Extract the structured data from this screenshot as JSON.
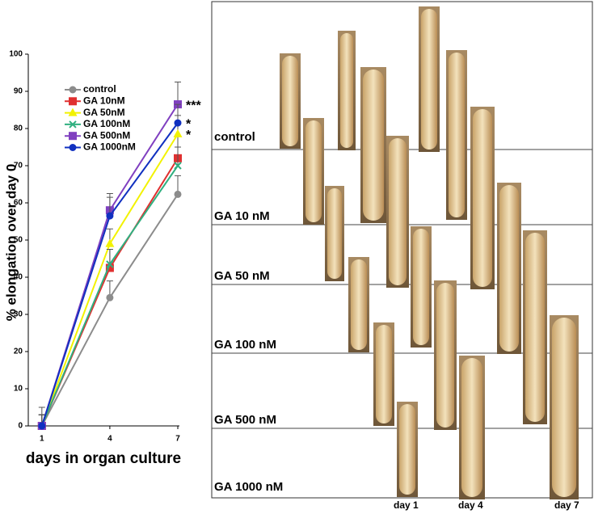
{
  "chart_data": {
    "type": "line",
    "ylabel": "% elongation over day 0",
    "xlabel": "days in organ culture",
    "x": [
      1,
      4,
      7
    ],
    "xlim": [
      0.4,
      7
    ],
    "xticks": [
      1,
      4,
      7
    ],
    "ylim": [
      0,
      100
    ],
    "yticks": [
      0,
      10,
      20,
      30,
      40,
      50,
      60,
      70,
      80,
      90,
      100
    ],
    "series": [
      {
        "name": "control",
        "color": "#8c8c8c",
        "marker": "circle",
        "values": [
          0,
          34.5,
          62.3
        ],
        "errors": [
          5,
          4.5,
          5
        ]
      },
      {
        "name": "GA 10nM",
        "color": "#e03030",
        "marker": "square",
        "values": [
          0,
          42.5,
          72
        ],
        "errors": [
          3,
          5,
          6
        ]
      },
      {
        "name": "GA 50nM",
        "color": "#f2f200",
        "marker": "triangle",
        "values": [
          0,
          49,
          78.5
        ],
        "errors": [
          3,
          4,
          5
        ],
        "significance": "*"
      },
      {
        "name": "GA 100nM",
        "color": "#30b080",
        "marker": "x",
        "values": [
          0,
          43.5,
          70
        ],
        "errors": [
          3,
          4,
          5
        ]
      },
      {
        "name": "GA 500nM",
        "color": "#8040c0",
        "marker": "square",
        "values": [
          0,
          58,
          86.5
        ],
        "errors": [
          3,
          4.5,
          6
        ],
        "significance": "***"
      },
      {
        "name": "GA 1000nM",
        "color": "#1030c0",
        "marker": "circle",
        "values": [
          0,
          56.5,
          81.5
        ],
        "errors": [
          3,
          5,
          5
        ],
        "significance": "*"
      }
    ]
  },
  "panel": {
    "rows": [
      "control",
      "GA 10 nM",
      "GA 50 nM",
      "GA 100 nM",
      "GA 500 nM",
      "GA 1000 nM"
    ],
    "columns": [
      "day 1",
      "day 4",
      "day 7"
    ]
  }
}
